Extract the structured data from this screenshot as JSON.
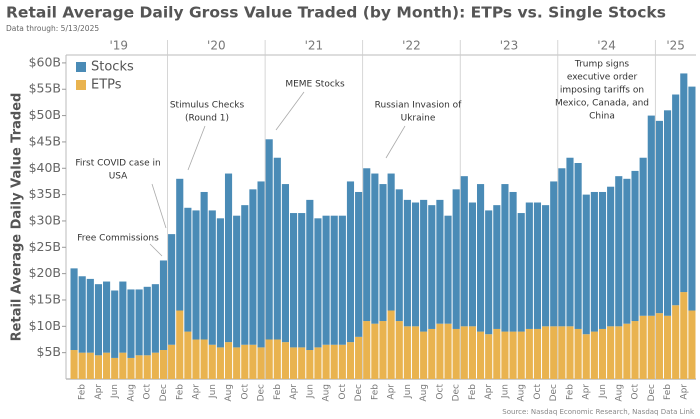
{
  "chart_data": {
    "type": "stacked_bar",
    "title": "Retail Average Daily Gross Value Traded (by Month): ETPs vs. Single Stocks",
    "subtitle": "Data through: 5/13/2025",
    "y_label": "Retail Average Daily Value Traded",
    "source": "Source: Nasdaq Economic Research, Nasdaq Data Link",
    "year_labels": [
      "'19",
      "'20",
      "'21",
      "'22",
      "'23",
      "'24",
      "'25"
    ],
    "categories": [
      null,
      "Feb",
      null,
      "Apr",
      null,
      "Jun",
      null,
      "Aug",
      null,
      "Oct",
      null,
      "Dec",
      null,
      "Feb",
      null,
      "Apr",
      null,
      "Jun",
      null,
      "Aug",
      null,
      "Oct",
      null,
      "Dec",
      null,
      "Feb",
      null,
      "Apr",
      null,
      "Jun",
      null,
      "Aug",
      null,
      "Oct",
      null,
      "Dec",
      null,
      "Feb",
      null,
      "Apr",
      null,
      "Jun",
      null,
      "Aug",
      null,
      "Oct",
      null,
      "Dec",
      null,
      "Feb",
      null,
      "Apr",
      null,
      "Jun",
      null,
      "Aug",
      null,
      "Oct",
      null,
      "Dec",
      null,
      "Feb",
      null,
      "Apr",
      null,
      "Jun",
      null,
      "Aug",
      null,
      "Oct",
      null,
      "Dec",
      null,
      "Feb",
      null,
      "Apr",
      null
    ],
    "series": [
      {
        "name": "ETPs",
        "color": "#e9b34f",
        "values": [
          5.5,
          5,
          5,
          4.5,
          5,
          4,
          5,
          4,
          4.5,
          4.5,
          5,
          5.5,
          6.5,
          13,
          9,
          7.5,
          7.5,
          6.5,
          6,
          7,
          6,
          6.5,
          6.5,
          6,
          7.5,
          7.5,
          7,
          6,
          6,
          5.5,
          6,
          6.5,
          6.5,
          6.5,
          7,
          8,
          11,
          10.5,
          11,
          13,
          11,
          10,
          10,
          9,
          9.5,
          10.5,
          10.5,
          9.5,
          10,
          10,
          9,
          8.5,
          9.5,
          9,
          9,
          9,
          9.5,
          9.5,
          10,
          10,
          10,
          10,
          9.5,
          8.5,
          9,
          9.5,
          10,
          10,
          10.5,
          11,
          12,
          12,
          12.5,
          12,
          14,
          16.5,
          13
        ]
      },
      {
        "name": "Stocks",
        "color": "#4a8bb6",
        "values": [
          15.5,
          14.5,
          14,
          13.5,
          13.5,
          12.8,
          13.5,
          13,
          12.5,
          13,
          13,
          17,
          21,
          25,
          23.5,
          24.5,
          28,
          25.5,
          24.5,
          32,
          25,
          26.5,
          29.5,
          31.5,
          38,
          34.5,
          30,
          25.5,
          25.5,
          28.5,
          24.5,
          24.5,
          24.5,
          24.5,
          30.5,
          27.5,
          29,
          28.5,
          26,
          26,
          25,
          24,
          23.5,
          25,
          23.5,
          23.5,
          20.5,
          26.5,
          28.5,
          23.5,
          28,
          23.5,
          23.5,
          28,
          26.5,
          22.5,
          24,
          24,
          23,
          27.5,
          30,
          32,
          31.5,
          26.5,
          26.5,
          26,
          26.5,
          28.5,
          27.5,
          28.5,
          30,
          38,
          36.5,
          39,
          40,
          41.5,
          42.5
        ]
      }
    ],
    "ylim": [
      0,
      61.5
    ],
    "yticks": [
      {
        "value": 5,
        "label": "$5B"
      },
      {
        "value": 10,
        "label": "$10B"
      },
      {
        "value": 15,
        "label": "$15B"
      },
      {
        "value": 20,
        "label": "$20B"
      },
      {
        "value": 25,
        "label": "$25B"
      },
      {
        "value": 30,
        "label": "$30B"
      },
      {
        "value": 35,
        "label": "$35B"
      },
      {
        "value": 40,
        "label": "$40B"
      },
      {
        "value": 45,
        "label": "$45B"
      },
      {
        "value": 50,
        "label": "$50B"
      },
      {
        "value": 55,
        "label": "$55B"
      },
      {
        "value": 60,
        "label": "$60B"
      }
    ],
    "legend": "top-left",
    "annotations": [
      {
        "lines": [
          "Free Commissions"
        ]
      },
      {
        "lines": [
          "First COVID case in",
          "USA"
        ]
      },
      {
        "lines": [
          "Stimulus Checks",
          "(Round 1)"
        ]
      },
      {
        "lines": [
          "MEME Stocks"
        ]
      },
      {
        "lines": [
          "Russian Invasion of",
          "Ukraine"
        ]
      },
      {
        "lines": [
          "Trump signs",
          "executive order",
          "imposing tariffs on",
          "Mexico, Canada, and",
          "China"
        ]
      }
    ]
  }
}
